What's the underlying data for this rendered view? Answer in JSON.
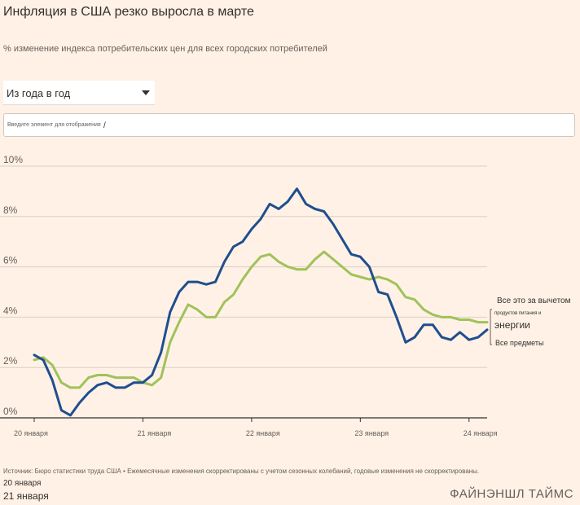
{
  "title": "Инфляция в США резко выросла в марте",
  "subtitle": "% изменение индекса потребительских цен для всех городских потребителей",
  "dropdown": {
    "selected": "Из года в год"
  },
  "search": {
    "placeholder": "Введите элемент для отображения",
    "caret": "/"
  },
  "chart_data": {
    "type": "line",
    "x_tick_labels": [
      "20 января",
      "21 января",
      "22 января",
      "23 января",
      "24 января"
    ],
    "y_tick_labels": [
      "0%",
      "2%",
      "4%",
      "6%",
      "8%",
      "10%"
    ],
    "ylim": [
      0,
      10
    ],
    "grid": true,
    "x": [
      "2020-01",
      "2020-02",
      "2020-03",
      "2020-04",
      "2020-05",
      "2020-06",
      "2020-07",
      "2020-08",
      "2020-09",
      "2020-10",
      "2020-11",
      "2020-12",
      "2021-01",
      "2021-02",
      "2021-03",
      "2021-04",
      "2021-05",
      "2021-06",
      "2021-07",
      "2021-08",
      "2021-09",
      "2021-10",
      "2021-11",
      "2021-12",
      "2022-01",
      "2022-02",
      "2022-03",
      "2022-04",
      "2022-05",
      "2022-06",
      "2022-07",
      "2022-08",
      "2022-09",
      "2022-10",
      "2022-11",
      "2022-12",
      "2023-01",
      "2023-02",
      "2023-03",
      "2023-04",
      "2023-05",
      "2023-06",
      "2023-07",
      "2023-08",
      "2023-09",
      "2023-10",
      "2023-11",
      "2023-12",
      "2024-01",
      "2024-02",
      "2024-03"
    ],
    "series": [
      {
        "name": "Все предметы",
        "color": "#1f4e8f",
        "values": [
          2.5,
          2.3,
          1.5,
          0.3,
          0.1,
          0.6,
          1.0,
          1.3,
          1.4,
          1.2,
          1.2,
          1.4,
          1.4,
          1.7,
          2.6,
          4.2,
          5.0,
          5.4,
          5.4,
          5.3,
          5.4,
          6.2,
          6.8,
          7.0,
          7.5,
          7.9,
          8.5,
          8.3,
          8.6,
          9.1,
          8.5,
          8.3,
          8.2,
          7.7,
          7.1,
          6.5,
          6.4,
          6.0,
          5.0,
          4.9,
          4.0,
          3.0,
          3.2,
          3.7,
          3.7,
          3.2,
          3.1,
          3.4,
          3.1,
          3.2,
          3.5
        ]
      },
      {
        "name": "Все это за вычетом продуктов питания и энергии",
        "color": "#a0c25a",
        "values": [
          2.3,
          2.4,
          2.1,
          1.4,
          1.2,
          1.2,
          1.6,
          1.7,
          1.7,
          1.6,
          1.6,
          1.6,
          1.4,
          1.3,
          1.6,
          3.0,
          3.8,
          4.5,
          4.3,
          4.0,
          4.0,
          4.6,
          4.9,
          5.5,
          6.0,
          6.4,
          6.5,
          6.2,
          6.0,
          5.9,
          5.9,
          6.3,
          6.6,
          6.3,
          6.0,
          5.7,
          5.6,
          5.5,
          5.6,
          5.5,
          5.3,
          4.8,
          4.7,
          4.3,
          4.1,
          4.0,
          4.0,
          3.9,
          3.9,
          3.8,
          3.8
        ]
      }
    ],
    "label_core": [
      "Все это за вычетом",
      "продуктов питания и",
      "энергии"
    ],
    "label_all": "Все предметы"
  },
  "source": "Источник: Бюро статистики труда США • Ежемесячные изменения скорректированы с учетом сезонных колебаний, годовые изменения не скорректированы.",
  "date_line_1": "20 января",
  "date_line_2": "21 января",
  "brand": "ФАЙНЭНШЛ ТАЙМС"
}
